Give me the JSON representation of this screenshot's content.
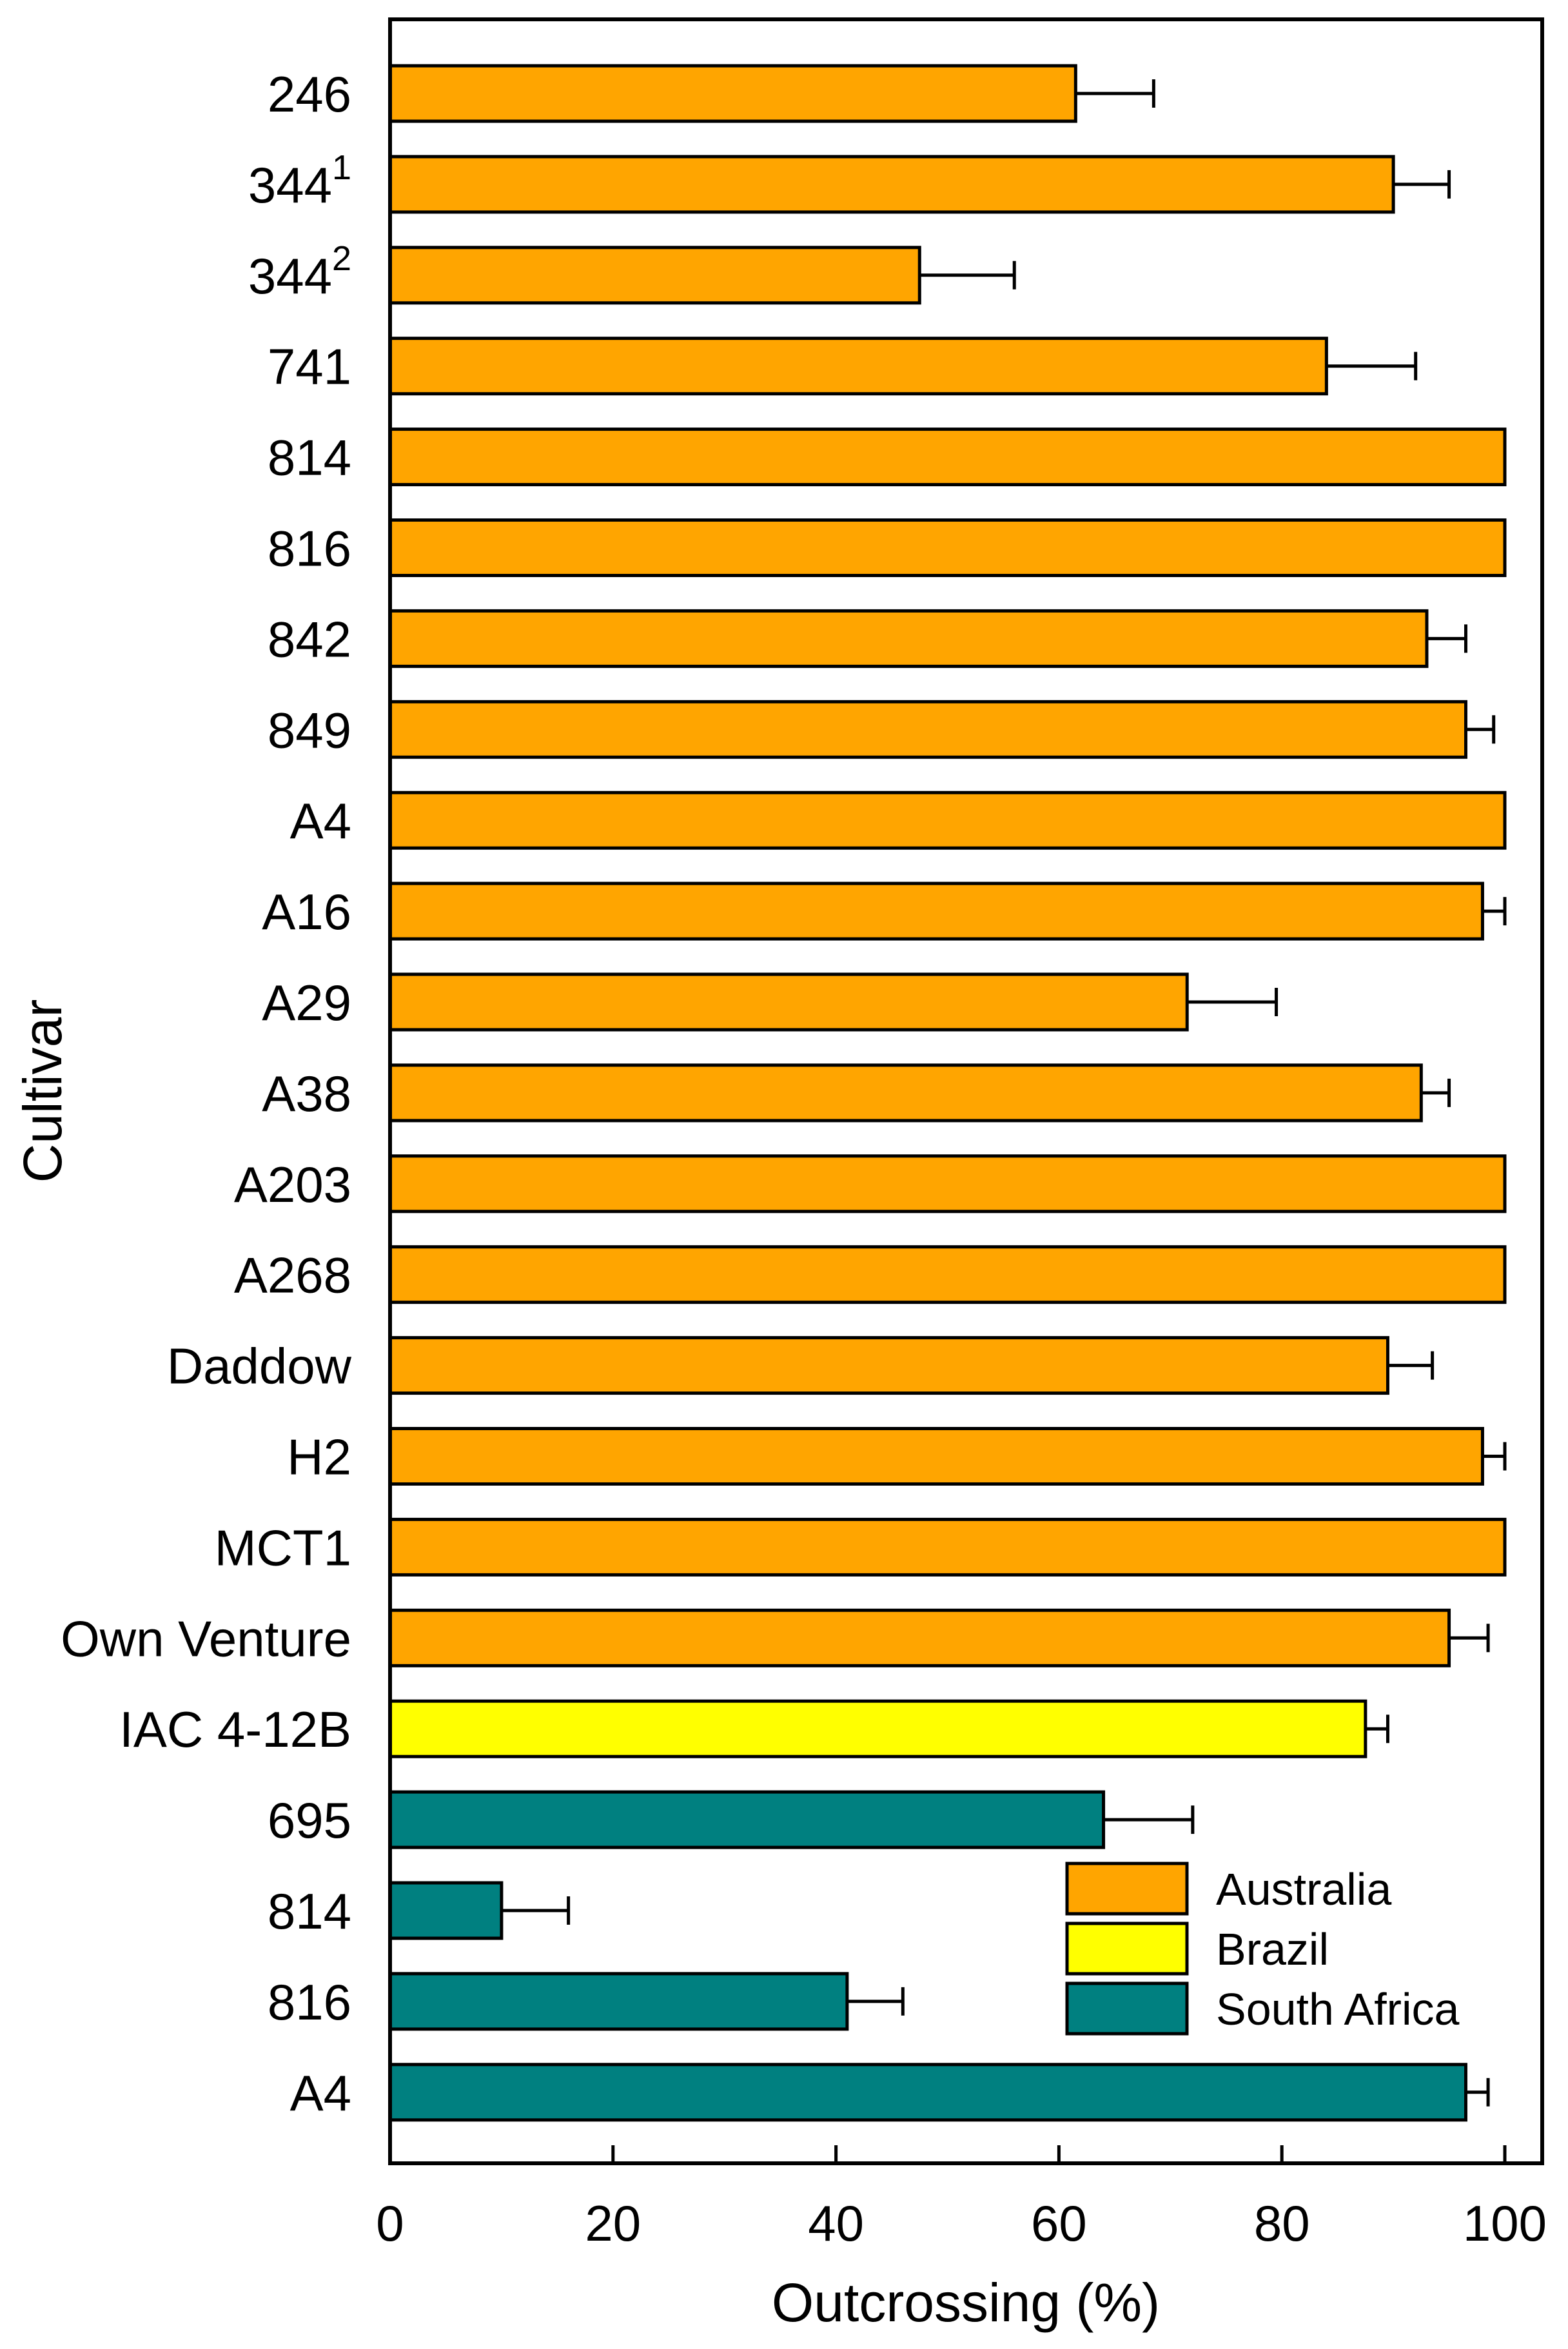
{
  "chart_data": {
    "type": "bar",
    "orientation": "horizontal",
    "xlabel": "Outcrossing (%)",
    "ylabel": "Cultivar",
    "xlim": [
      0,
      100
    ],
    "xticks": [
      "0",
      "20",
      "40",
      "60",
      "80",
      "100"
    ],
    "grid": false,
    "legend_position": "bottom-right",
    "legend": [
      {
        "name": "Australia",
        "color": "#FFA500"
      },
      {
        "name": "Brazil",
        "color": "#FFFF00"
      },
      {
        "name": "South Africa",
        "color": "#008080"
      }
    ],
    "bars": [
      {
        "label": "246",
        "sup": "",
        "value": 61.5,
        "error": 7,
        "group": "Australia"
      },
      {
        "label": "344",
        "sup": "1",
        "value": 90,
        "error": 5,
        "group": "Australia"
      },
      {
        "label": "344",
        "sup": "2",
        "value": 47.5,
        "error": 8.5,
        "group": "Australia"
      },
      {
        "label": "741",
        "sup": "",
        "value": 84,
        "error": 8,
        "group": "Australia"
      },
      {
        "label": "814",
        "sup": "",
        "value": 100,
        "error": 0,
        "group": "Australia"
      },
      {
        "label": "816",
        "sup": "",
        "value": 100,
        "error": 0,
        "group": "Australia"
      },
      {
        "label": "842",
        "sup": "",
        "value": 93,
        "error": 3.5,
        "group": "Australia"
      },
      {
        "label": "849",
        "sup": "",
        "value": 96.5,
        "error": 2.5,
        "group": "Australia"
      },
      {
        "label": "A4",
        "sup": "",
        "value": 100,
        "error": 0,
        "group": "Australia"
      },
      {
        "label": "A16",
        "sup": "",
        "value": 98,
        "error": 2,
        "group": "Australia"
      },
      {
        "label": "A29",
        "sup": "",
        "value": 71.5,
        "error": 8,
        "group": "Australia"
      },
      {
        "label": "A38",
        "sup": "",
        "value": 92.5,
        "error": 2.5,
        "group": "Australia"
      },
      {
        "label": "A203",
        "sup": "",
        "value": 100,
        "error": 0,
        "group": "Australia"
      },
      {
        "label": "A268",
        "sup": "",
        "value": 100,
        "error": 0,
        "group": "Australia"
      },
      {
        "label": "Daddow",
        "sup": "",
        "value": 89.5,
        "error": 4,
        "group": "Australia"
      },
      {
        "label": "H2",
        "sup": "",
        "value": 98,
        "error": 2,
        "group": "Australia"
      },
      {
        "label": "MCT1",
        "sup": "",
        "value": 100,
        "error": 0,
        "group": "Australia"
      },
      {
        "label": "Own Venture",
        "sup": "",
        "value": 95,
        "error": 3.5,
        "group": "Australia"
      },
      {
        "label": "IAC 4-12B",
        "sup": "",
        "value": 87.5,
        "error": 2,
        "group": "Brazil"
      },
      {
        "label": "695",
        "sup": "",
        "value": 64,
        "error": 8,
        "group": "South Africa"
      },
      {
        "label": "814",
        "sup": "",
        "value": 10,
        "error": 6,
        "group": "South Africa"
      },
      {
        "label": "816",
        "sup": "",
        "value": 41,
        "error": 5,
        "group": "South Africa"
      },
      {
        "label": "A4",
        "sup": "",
        "value": 96.5,
        "error": 2,
        "group": "South Africa"
      }
    ]
  }
}
